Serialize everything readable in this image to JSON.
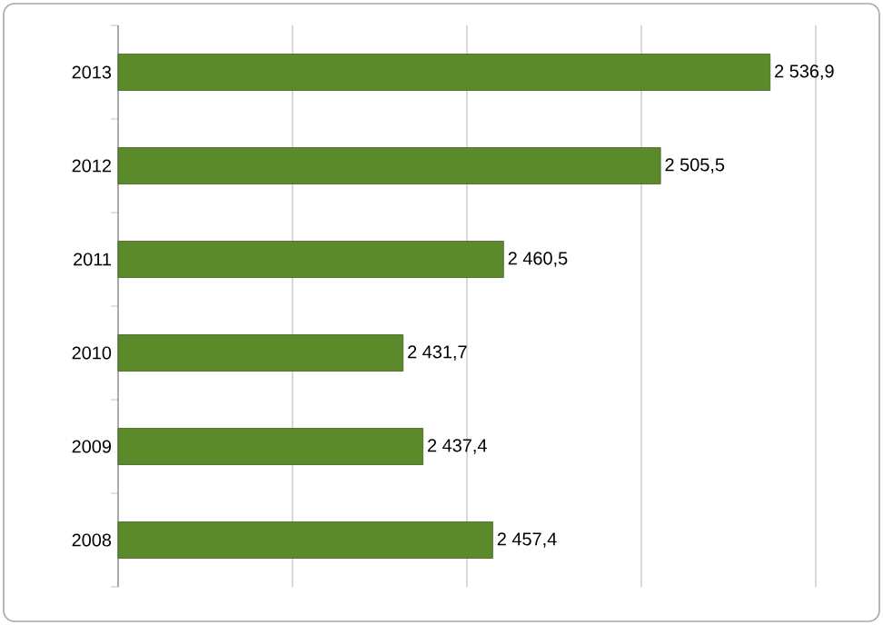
{
  "chart_data": {
    "type": "bar",
    "orientation": "horizontal",
    "categories": [
      "2013",
      "2012",
      "2011",
      "2010",
      "2009",
      "2008"
    ],
    "values": [
      2536.9,
      2505.5,
      2460.5,
      2431.7,
      2437.4,
      2457.4
    ],
    "value_labels": [
      "2 536,9",
      "2 505,5",
      "2 460,5",
      "2 431,7",
      "2 437,4",
      "2 457,4"
    ],
    "color": "#5b8a2b",
    "xlim": [
      2350,
      2550
    ],
    "xticks": [
      {
        "value": 2350,
        "label": null
      },
      {
        "value": 2400,
        "label": null
      },
      {
        "value": 2450,
        "label": null
      },
      {
        "value": 2500,
        "label": null
      },
      {
        "value": 2550,
        "label": null
      }
    ],
    "tick_labels": "y",
    "grid": "x"
  }
}
